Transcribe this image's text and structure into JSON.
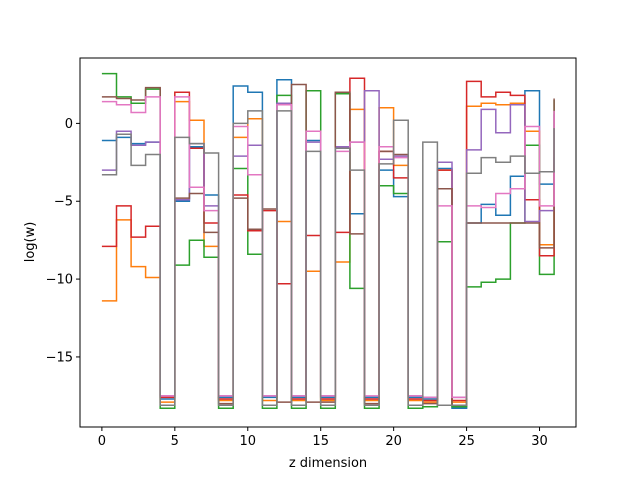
{
  "chart_data": {
    "type": "line",
    "step": "post",
    "title": "",
    "xlabel": "z dimension",
    "ylabel": "log(w)",
    "xlim": [
      -1.5,
      32.5
    ],
    "ylim": [
      -19.5,
      4.2
    ],
    "xticks": [
      0,
      5,
      10,
      15,
      20,
      25,
      30
    ],
    "yticks": [
      -15,
      -10,
      -5,
      0
    ],
    "grid": false,
    "legend": "none",
    "x": [
      0,
      1,
      2,
      3,
      4,
      5,
      6,
      7,
      8,
      9,
      10,
      11,
      12,
      13,
      14,
      15,
      16,
      17,
      18,
      19,
      20,
      21,
      22,
      23,
      24,
      25,
      26,
      27,
      28,
      29,
      30,
      31
    ],
    "series": [
      {
        "color": "#1f77b4",
        "values": [
          -1.1,
          -0.9,
          -1.3,
          -1.2,
          -17.7,
          -5.0,
          -1.5,
          -4.6,
          -17.6,
          2.4,
          2.0,
          -17.6,
          2.8,
          -17.6,
          -1.1,
          -17.6,
          -1.5,
          -5.8,
          -17.6,
          -3.0,
          -4.7,
          -17.6,
          -17.7,
          -2.9,
          -18.3,
          -6.4,
          -5.2,
          -5.9,
          -3.4,
          2.1,
          -3.9,
          -2.2
        ]
      },
      {
        "color": "#ff7f0e",
        "values": [
          -11.4,
          -6.2,
          -9.2,
          -9.9,
          -17.9,
          1.4,
          0.2,
          -7.9,
          -17.8,
          -0.9,
          0.3,
          -17.8,
          -6.3,
          -17.8,
          -9.5,
          -17.8,
          -8.9,
          0.9,
          -17.8,
          1.0,
          -2.7,
          -17.8,
          -17.9,
          -3.0,
          -17.9,
          1.1,
          1.3,
          1.2,
          1.3,
          -0.5,
          -7.8,
          -2.6
        ]
      },
      {
        "color": "#2ca02c",
        "values": [
          3.2,
          1.7,
          1.3,
          2.2,
          -18.3,
          -9.1,
          -7.5,
          -8.6,
          -18.3,
          -2.9,
          -8.4,
          -18.3,
          1.8,
          -18.3,
          2.1,
          -18.3,
          1.9,
          -10.6,
          -18.3,
          -4.0,
          -4.5,
          -18.3,
          -18.2,
          -7.6,
          -18.2,
          -10.5,
          -10.2,
          -10.0,
          -6.4,
          -1.4,
          -9.7,
          1.5
        ]
      },
      {
        "color": "#d62728",
        "values": [
          -7.9,
          -5.3,
          -7.3,
          -6.6,
          -17.6,
          2.0,
          -1.6,
          -6.4,
          -17.7,
          -4.6,
          -6.9,
          -5.6,
          -10.3,
          -17.7,
          -7.2,
          -17.7,
          -7.0,
          2.9,
          -17.7,
          -1.8,
          -3.5,
          -17.7,
          -17.8,
          -3.0,
          -17.8,
          2.7,
          1.7,
          2.0,
          1.8,
          -4.9,
          -8.5,
          -1.7
        ]
      },
      {
        "color": "#9467bd",
        "values": [
          -3.0,
          -0.5,
          -1.4,
          -1.2,
          -17.5,
          -4.9,
          -1.3,
          -5.3,
          -17.5,
          -2.1,
          -1.4,
          -17.5,
          1.3,
          -17.5,
          -1.2,
          -17.5,
          -1.5,
          -1.2,
          2.1,
          -2.3,
          -2.1,
          -17.5,
          -17.6,
          -2.5,
          -17.6,
          -1.7,
          0.9,
          -0.6,
          1.2,
          -6.3,
          -5.6,
          0.6
        ]
      },
      {
        "color": "#8c564b",
        "values": [
          1.7,
          1.6,
          1.5,
          2.3,
          -18.1,
          -4.8,
          -4.5,
          -7.0,
          -18.0,
          -4.8,
          -6.8,
          -5.5,
          -17.9,
          2.5,
          -17.9,
          -17.9,
          2.0,
          -7.1,
          -18.0,
          -1.8,
          -2.0,
          -18.1,
          -18.0,
          -4.2,
          -18.1,
          -6.4,
          -6.4,
          -6.4,
          -6.4,
          -6.4,
          -8.0,
          1.6
        ]
      },
      {
        "color": "#e377c2",
        "values": [
          1.4,
          1.2,
          0.7,
          1.7,
          -17.5,
          1.7,
          -4.1,
          -5.6,
          -17.5,
          -0.2,
          -3.3,
          -17.5,
          1.2,
          -17.5,
          -0.5,
          -17.5,
          -1.8,
          -1.2,
          -17.5,
          -1.5,
          -2.2,
          -17.5,
          -17.6,
          -5.3,
          -17.6,
          -5.3,
          -5.4,
          -4.5,
          -4.2,
          -0.2,
          -5.3,
          0.8
        ]
      },
      {
        "color": "#7f7f7f",
        "values": [
          -3.3,
          -0.7,
          -2.7,
          -2.0,
          -18.1,
          -0.9,
          -1.3,
          -1.9,
          -18.1,
          -0.0,
          0.8,
          -18.1,
          0.8,
          -18.1,
          -1.8,
          -18.1,
          -1.6,
          -3.0,
          -18.1,
          -2.6,
          0.2,
          -18.1,
          -1.2,
          -18.1,
          -18.1,
          -3.2,
          -2.2,
          -2.5,
          -2.1,
          -3.2,
          -3.1,
          -0.3
        ]
      }
    ]
  }
}
